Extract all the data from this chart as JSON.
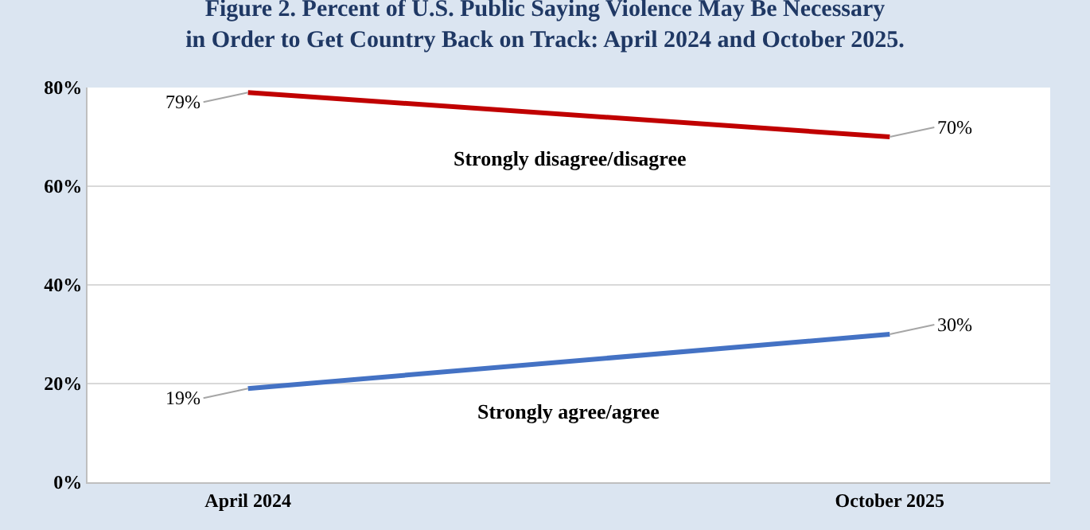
{
  "chart_data": {
    "type": "line",
    "title": "Figure 2. Percent of U.S. Public Saying Violence May Be Necessary in Order to Get Country Back on Track: April 2024 and October 2025.",
    "categories": [
      "April 2024",
      "October 2025"
    ],
    "series": [
      {
        "name": "Strongly disagree/disagree",
        "color": "#c00000",
        "values": [
          79,
          70
        ],
        "value_labels": [
          "79%",
          "70%"
        ]
      },
      {
        "name": "Strongly agree/agree",
        "color": "#4472c4",
        "values": [
          19,
          30
        ],
        "value_labels": [
          "19%",
          "30%"
        ]
      }
    ],
    "ylim": [
      0,
      80
    ],
    "yticks": [
      {
        "value": 0,
        "label": "0%"
      },
      {
        "value": 20,
        "label": "20%"
      },
      {
        "value": 40,
        "label": "40%"
      },
      {
        "value": 60,
        "label": "60%"
      },
      {
        "value": 80,
        "label": "80%"
      }
    ],
    "grid": "y",
    "legend": false,
    "marker": "none",
    "line_style": "solid"
  }
}
